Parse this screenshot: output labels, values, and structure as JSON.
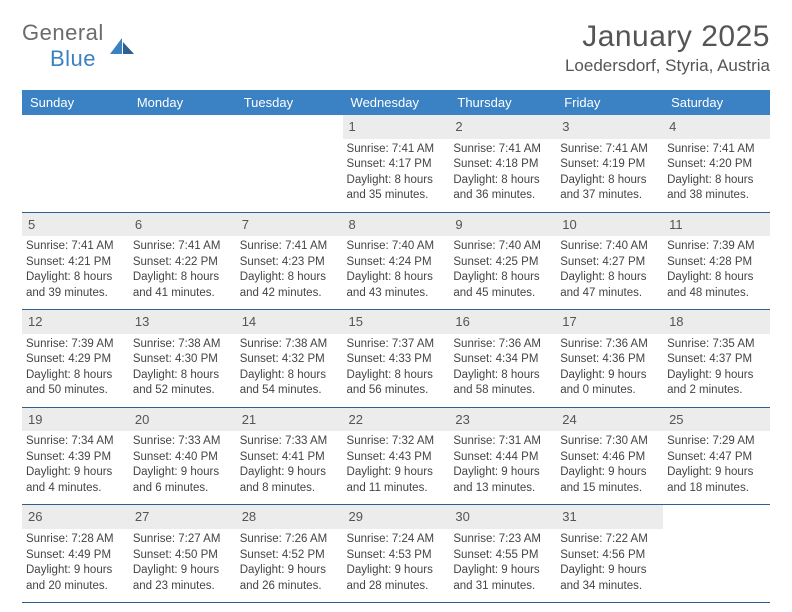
{
  "logo": {
    "word1": "General",
    "word2": "Blue"
  },
  "header": {
    "title": "January 2025",
    "subtitle": "Loedersdorf, Styria, Austria"
  },
  "colors": {
    "header_bg": "#3b82c4",
    "header_text": "#ffffff",
    "daynum_bg": "#ececec",
    "row_border": "#2d5f8f",
    "body_text": "#444444",
    "title_text": "#555555"
  },
  "weekdays": [
    "Sunday",
    "Monday",
    "Tuesday",
    "Wednesday",
    "Thursday",
    "Friday",
    "Saturday"
  ],
  "weeks": [
    [
      {
        "empty": true
      },
      {
        "empty": true
      },
      {
        "empty": true
      },
      {
        "day": "1",
        "sunrise": "Sunrise: 7:41 AM",
        "sunset": "Sunset: 4:17 PM",
        "daylight": "Daylight: 8 hours and 35 minutes."
      },
      {
        "day": "2",
        "sunrise": "Sunrise: 7:41 AM",
        "sunset": "Sunset: 4:18 PM",
        "daylight": "Daylight: 8 hours and 36 minutes."
      },
      {
        "day": "3",
        "sunrise": "Sunrise: 7:41 AM",
        "sunset": "Sunset: 4:19 PM",
        "daylight": "Daylight: 8 hours and 37 minutes."
      },
      {
        "day": "4",
        "sunrise": "Sunrise: 7:41 AM",
        "sunset": "Sunset: 4:20 PM",
        "daylight": "Daylight: 8 hours and 38 minutes."
      }
    ],
    [
      {
        "day": "5",
        "sunrise": "Sunrise: 7:41 AM",
        "sunset": "Sunset: 4:21 PM",
        "daylight": "Daylight: 8 hours and 39 minutes."
      },
      {
        "day": "6",
        "sunrise": "Sunrise: 7:41 AM",
        "sunset": "Sunset: 4:22 PM",
        "daylight": "Daylight: 8 hours and 41 minutes."
      },
      {
        "day": "7",
        "sunrise": "Sunrise: 7:41 AM",
        "sunset": "Sunset: 4:23 PM",
        "daylight": "Daylight: 8 hours and 42 minutes."
      },
      {
        "day": "8",
        "sunrise": "Sunrise: 7:40 AM",
        "sunset": "Sunset: 4:24 PM",
        "daylight": "Daylight: 8 hours and 43 minutes."
      },
      {
        "day": "9",
        "sunrise": "Sunrise: 7:40 AM",
        "sunset": "Sunset: 4:25 PM",
        "daylight": "Daylight: 8 hours and 45 minutes."
      },
      {
        "day": "10",
        "sunrise": "Sunrise: 7:40 AM",
        "sunset": "Sunset: 4:27 PM",
        "daylight": "Daylight: 8 hours and 47 minutes."
      },
      {
        "day": "11",
        "sunrise": "Sunrise: 7:39 AM",
        "sunset": "Sunset: 4:28 PM",
        "daylight": "Daylight: 8 hours and 48 minutes."
      }
    ],
    [
      {
        "day": "12",
        "sunrise": "Sunrise: 7:39 AM",
        "sunset": "Sunset: 4:29 PM",
        "daylight": "Daylight: 8 hours and 50 minutes."
      },
      {
        "day": "13",
        "sunrise": "Sunrise: 7:38 AM",
        "sunset": "Sunset: 4:30 PM",
        "daylight": "Daylight: 8 hours and 52 minutes."
      },
      {
        "day": "14",
        "sunrise": "Sunrise: 7:38 AM",
        "sunset": "Sunset: 4:32 PM",
        "daylight": "Daylight: 8 hours and 54 minutes."
      },
      {
        "day": "15",
        "sunrise": "Sunrise: 7:37 AM",
        "sunset": "Sunset: 4:33 PM",
        "daylight": "Daylight: 8 hours and 56 minutes."
      },
      {
        "day": "16",
        "sunrise": "Sunrise: 7:36 AM",
        "sunset": "Sunset: 4:34 PM",
        "daylight": "Daylight: 8 hours and 58 minutes."
      },
      {
        "day": "17",
        "sunrise": "Sunrise: 7:36 AM",
        "sunset": "Sunset: 4:36 PM",
        "daylight": "Daylight: 9 hours and 0 minutes."
      },
      {
        "day": "18",
        "sunrise": "Sunrise: 7:35 AM",
        "sunset": "Sunset: 4:37 PM",
        "daylight": "Daylight: 9 hours and 2 minutes."
      }
    ],
    [
      {
        "day": "19",
        "sunrise": "Sunrise: 7:34 AM",
        "sunset": "Sunset: 4:39 PM",
        "daylight": "Daylight: 9 hours and 4 minutes."
      },
      {
        "day": "20",
        "sunrise": "Sunrise: 7:33 AM",
        "sunset": "Sunset: 4:40 PM",
        "daylight": "Daylight: 9 hours and 6 minutes."
      },
      {
        "day": "21",
        "sunrise": "Sunrise: 7:33 AM",
        "sunset": "Sunset: 4:41 PM",
        "daylight": "Daylight: 9 hours and 8 minutes."
      },
      {
        "day": "22",
        "sunrise": "Sunrise: 7:32 AM",
        "sunset": "Sunset: 4:43 PM",
        "daylight": "Daylight: 9 hours and 11 minutes."
      },
      {
        "day": "23",
        "sunrise": "Sunrise: 7:31 AM",
        "sunset": "Sunset: 4:44 PM",
        "daylight": "Daylight: 9 hours and 13 minutes."
      },
      {
        "day": "24",
        "sunrise": "Sunrise: 7:30 AM",
        "sunset": "Sunset: 4:46 PM",
        "daylight": "Daylight: 9 hours and 15 minutes."
      },
      {
        "day": "25",
        "sunrise": "Sunrise: 7:29 AM",
        "sunset": "Sunset: 4:47 PM",
        "daylight": "Daylight: 9 hours and 18 minutes."
      }
    ],
    [
      {
        "day": "26",
        "sunrise": "Sunrise: 7:28 AM",
        "sunset": "Sunset: 4:49 PM",
        "daylight": "Daylight: 9 hours and 20 minutes."
      },
      {
        "day": "27",
        "sunrise": "Sunrise: 7:27 AM",
        "sunset": "Sunset: 4:50 PM",
        "daylight": "Daylight: 9 hours and 23 minutes."
      },
      {
        "day": "28",
        "sunrise": "Sunrise: 7:26 AM",
        "sunset": "Sunset: 4:52 PM",
        "daylight": "Daylight: 9 hours and 26 minutes."
      },
      {
        "day": "29",
        "sunrise": "Sunrise: 7:24 AM",
        "sunset": "Sunset: 4:53 PM",
        "daylight": "Daylight: 9 hours and 28 minutes."
      },
      {
        "day": "30",
        "sunrise": "Sunrise: 7:23 AM",
        "sunset": "Sunset: 4:55 PM",
        "daylight": "Daylight: 9 hours and 31 minutes."
      },
      {
        "day": "31",
        "sunrise": "Sunrise: 7:22 AM",
        "sunset": "Sunset: 4:56 PM",
        "daylight": "Daylight: 9 hours and 34 minutes."
      },
      {
        "empty": true
      }
    ]
  ]
}
